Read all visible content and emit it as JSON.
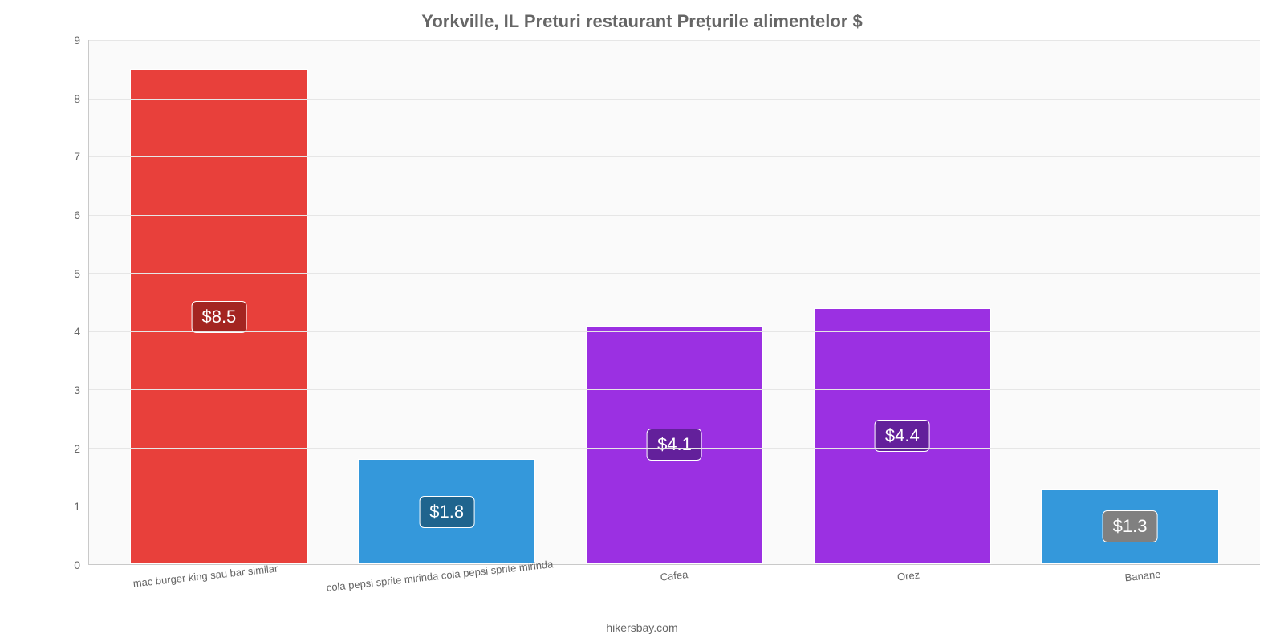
{
  "chart": {
    "type": "bar",
    "title": "Yorkville, IL Preturi restaurant Prețurile alimentelor $",
    "title_color": "#666666",
    "title_fontsize": 22,
    "background_color": "#ffffff",
    "plot_background_color": "#fafafa",
    "grid_color": "#e6e6e6",
    "axis_color": "#c9c9c9",
    "label_color": "#666666",
    "label_fontsize": 14,
    "xlabel_fontsize": 13,
    "value_fontsize": 22,
    "ylim": [
      0,
      9
    ],
    "ytick_step": 1,
    "yticks": [
      "0",
      "1",
      "2",
      "3",
      "4",
      "5",
      "6",
      "7",
      "8",
      "9"
    ],
    "bar_width_pct": 78,
    "categories": [
      "mac burger king sau bar similar",
      "cola pepsi sprite mirinda cola pepsi sprite mirinda",
      "Cafea",
      "Orez",
      "Banane"
    ],
    "values": [
      8.5,
      1.8,
      4.1,
      4.4,
      1.3
    ],
    "value_labels": [
      "$8.5",
      "$1.8",
      "$4.1",
      "$4.4",
      "$1.3"
    ],
    "bar_colors": [
      "#e8403b",
      "#3498db",
      "#9b30e2",
      "#9b30e2",
      "#3498db"
    ],
    "badge_colors": [
      "#a42521",
      "#1f648e",
      "#63209b",
      "#63209b",
      "#808080"
    ],
    "badge_text_color": "#ffffff",
    "footer": "hikersbay.com",
    "xlabel_rotation_deg": -6
  }
}
